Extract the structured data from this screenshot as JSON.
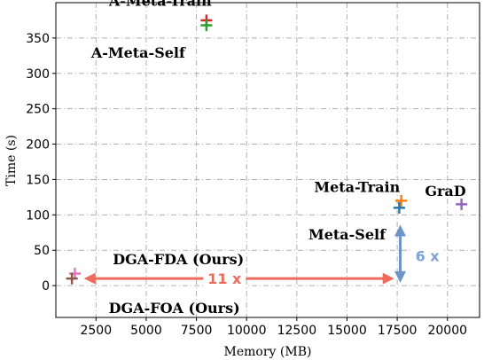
{
  "chart_data": {
    "type": "scatter",
    "xlabel": "Memory (MB)",
    "ylabel": "Time (s)",
    "xlim": [
      500,
      21600
    ],
    "ylim": [
      -45,
      400
    ],
    "xticks": [
      2500,
      5000,
      7500,
      10000,
      12500,
      15000,
      17500,
      20000
    ],
    "yticks": [
      0,
      50,
      100,
      150,
      200,
      250,
      300,
      350
    ],
    "grid": true,
    "points": [
      {
        "label": "A-Meta-Train",
        "x": 8000,
        "y": 375,
        "color": "#d62728"
      },
      {
        "label": "A-Meta-Self",
        "x": 8000,
        "y": 368,
        "color": "#2ca02c"
      },
      {
        "label": "Meta-Train",
        "x": 17700,
        "y": 120,
        "color": "#ff7f0e"
      },
      {
        "label": "Meta-Self",
        "x": 17600,
        "y": 110,
        "color": "#1f77b4"
      },
      {
        "label": "GraD",
        "x": 20700,
        "y": 115,
        "color": "#9467bd"
      },
      {
        "label": "DGA-FDA (Ours)",
        "x": 1450,
        "y": 17,
        "color": "#e377c2"
      },
      {
        "label": "DGA-FOA (Ours)",
        "x": 1300,
        "y": 10,
        "color": "#8c564b"
      }
    ],
    "annotations": [
      {
        "text": "A-Meta-Train",
        "x": 5700,
        "y": 403
      },
      {
        "text": "A-Meta-Self",
        "x": 4600,
        "y": 330
      },
      {
        "text": "Meta-Train",
        "x": 15500,
        "y": 140
      },
      {
        "text": "Meta-Self",
        "x": 15000,
        "y": 73
      },
      {
        "text": "GraD",
        "x": 19900,
        "y": 134
      },
      {
        "text": "DGA-FDA (Ours)",
        "x": 6600,
        "y": 38
      },
      {
        "text": "DGA-FOA (Ours)",
        "x": 6400,
        "y": -31
      }
    ],
    "arrows": [
      {
        "label": "11 x",
        "color": "#ee6b5b",
        "label_color": "#ee6b5b",
        "x1": 1900,
        "y1": 10,
        "x2": 17350,
        "y2": 10,
        "label_x": 8900,
        "label_y": 10
      },
      {
        "label": "6 x",
        "color": "#6e94c7",
        "label_color": "#7ea3d6",
        "x1": 17650,
        "y1": 86,
        "x2": 17650,
        "y2": 4,
        "label_x": 19000,
        "label_y": 42
      }
    ]
  }
}
